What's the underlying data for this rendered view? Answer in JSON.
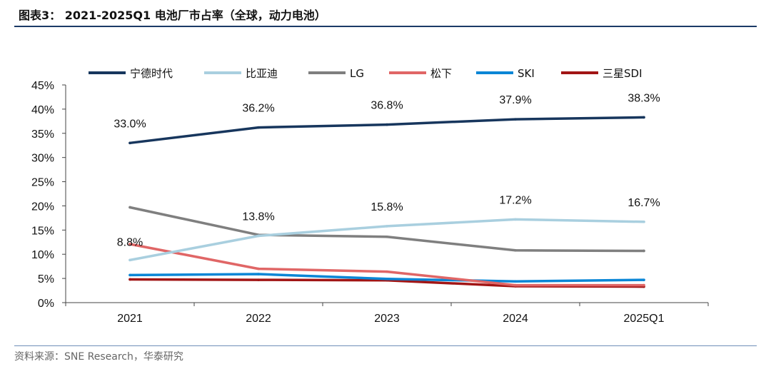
{
  "header": {
    "title": "图表3： 2021-2025Q1 电池厂市占率（全球，动力电池）"
  },
  "footer": {
    "source": "资料来源：SNE Research，华泰研究"
  },
  "chart_data": {
    "type": "line",
    "categories": [
      "2021",
      "2022",
      "2023",
      "2024",
      "2025Q1"
    ],
    "ylim": [
      0,
      45
    ],
    "y_unit": "%",
    "y_ticks": [
      "0%",
      "5%",
      "10%",
      "15%",
      "20%",
      "25%",
      "30%",
      "35%",
      "40%",
      "45%"
    ],
    "legend_position": "top",
    "series": [
      {
        "name": "宁德时代",
        "color": "#17365d",
        "values": [
          33.0,
          36.2,
          36.8,
          37.9,
          38.3
        ],
        "labels": [
          "33.0%",
          "36.2%",
          "36.8%",
          "37.9%",
          "38.3%"
        ]
      },
      {
        "name": "比亚迪",
        "color": "#a9cfdf",
        "values": [
          8.8,
          13.8,
          15.8,
          17.2,
          16.7
        ],
        "labels": [
          "8.8%",
          "13.8%",
          "15.8%",
          "17.2%",
          "16.7%"
        ]
      },
      {
        "name": "LG",
        "color": "#7f7f7f",
        "values": [
          19.7,
          14.0,
          13.6,
          10.8,
          10.7
        ]
      },
      {
        "name": "松下",
        "color": "#e06666",
        "values": [
          12.1,
          7.0,
          6.4,
          3.6,
          3.6
        ]
      },
      {
        "name": "SKI",
        "color": "#0a86d6",
        "values": [
          5.7,
          5.9,
          4.9,
          4.4,
          4.7
        ]
      },
      {
        "name": "三星SDI",
        "color": "#a11515",
        "values": [
          4.8,
          4.7,
          4.6,
          3.4,
          3.3
        ]
      }
    ]
  }
}
